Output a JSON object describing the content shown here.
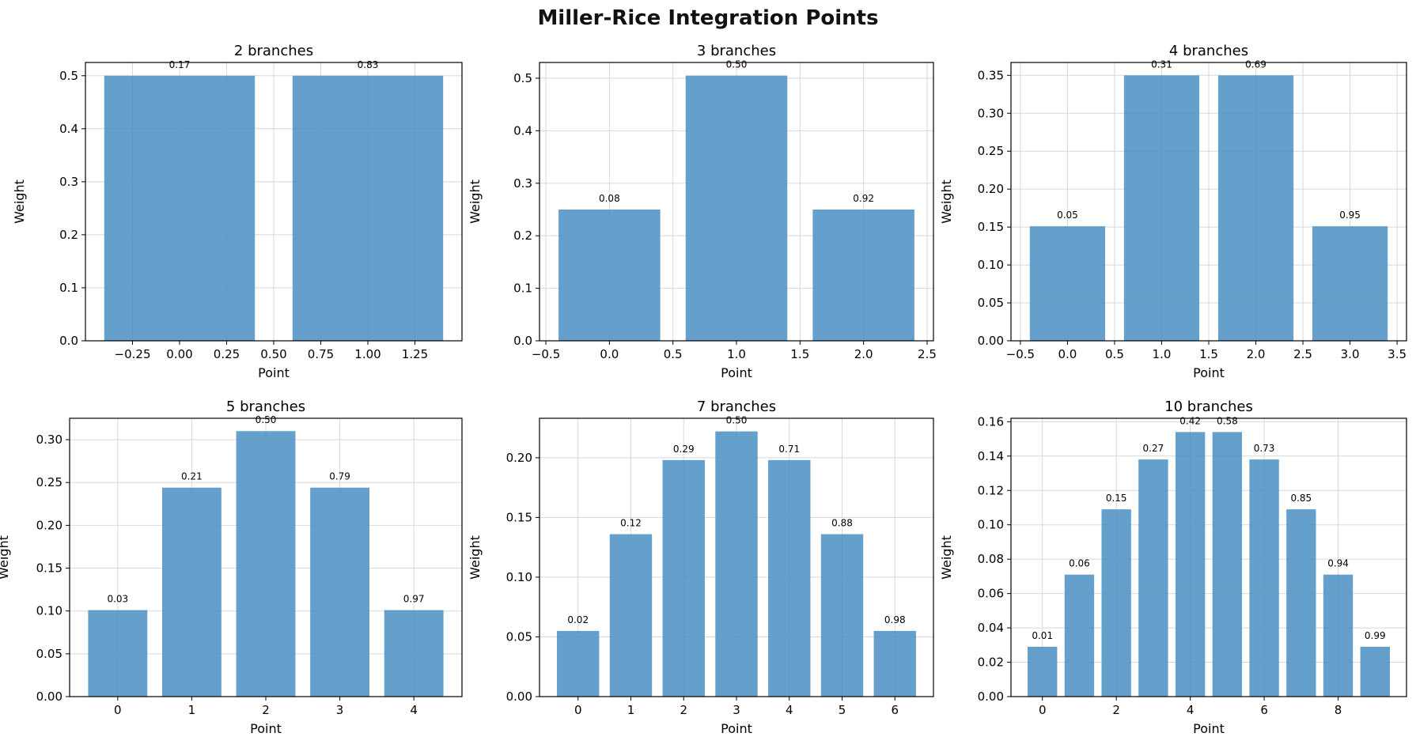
{
  "title": "Miller-Rice Integration Points",
  "colors": {
    "bar": "#4a90c2",
    "bar_opacity": 0.86,
    "grid": "#d8d8d8",
    "axis": "#000000"
  },
  "chart_data": [
    {
      "type": "bar",
      "title": "2 branches",
      "xlabel": "Point",
      "ylabel": "Weight",
      "x": [
        0,
        1
      ],
      "values": [
        0.5,
        0.5
      ],
      "bar_labels": [
        "0.17",
        "0.83"
      ],
      "xlim": [
        -0.5,
        1.5
      ],
      "ylim": [
        0,
        0.525
      ],
      "xticks": [
        -0.25,
        0.0,
        0.25,
        0.5,
        0.75,
        1.0,
        1.25
      ],
      "xtick_labels": [
        "−0.25",
        "0.00",
        "0.25",
        "0.50",
        "0.75",
        "1.00",
        "1.25"
      ],
      "yticks": [
        0,
        0.1,
        0.2,
        0.3,
        0.4,
        0.5
      ],
      "ytick_labels": [
        "0.0",
        "0.1",
        "0.2",
        "0.3",
        "0.4",
        "0.5"
      ],
      "grid": true
    },
    {
      "type": "bar",
      "title": "3 branches",
      "xlabel": "Point",
      "ylabel": "Weight",
      "x": [
        0,
        1,
        2
      ],
      "values": [
        0.25,
        0.505,
        0.25
      ],
      "bar_labels": [
        "0.08",
        "0.50",
        "0.92"
      ],
      "xlim": [
        -0.55,
        2.55
      ],
      "ylim": [
        0,
        0.53
      ],
      "xticks": [
        -0.5,
        0.0,
        0.5,
        1.0,
        1.5,
        2.0,
        2.5
      ],
      "xtick_labels": [
        "−0.5",
        "0.0",
        "0.5",
        "1.0",
        "1.5",
        "2.0",
        "2.5"
      ],
      "yticks": [
        0,
        0.1,
        0.2,
        0.3,
        0.4,
        0.5
      ],
      "ytick_labels": [
        "0.0",
        "0.1",
        "0.2",
        "0.3",
        "0.4",
        "0.5"
      ],
      "grid": true
    },
    {
      "type": "bar",
      "title": "4 branches",
      "xlabel": "Point",
      "ylabel": "Weight",
      "x": [
        0,
        1,
        2,
        3
      ],
      "values": [
        0.151,
        0.35,
        0.35,
        0.151
      ],
      "bar_labels": [
        "0.05",
        "0.31",
        "0.69",
        "0.95"
      ],
      "xlim": [
        -0.6,
        3.6
      ],
      "ylim": [
        0,
        0.367
      ],
      "xticks": [
        -0.5,
        0.0,
        0.5,
        1.0,
        1.5,
        2.0,
        2.5,
        3.0,
        3.5
      ],
      "xtick_labels": [
        "−0.5",
        "0.0",
        "0.5",
        "1.0",
        "1.5",
        "2.0",
        "2.5",
        "3.0",
        "3.5"
      ],
      "yticks": [
        0,
        0.05,
        0.1,
        0.15,
        0.2,
        0.25,
        0.3,
        0.35
      ],
      "ytick_labels": [
        "0.00",
        "0.05",
        "0.10",
        "0.15",
        "0.20",
        "0.25",
        "0.30",
        "0.35"
      ],
      "grid": true
    },
    {
      "type": "bar",
      "title": "5 branches",
      "xlabel": "Point",
      "ylabel": "Weight",
      "x": [
        0,
        1,
        2,
        3,
        4
      ],
      "values": [
        0.101,
        0.244,
        0.31,
        0.244,
        0.101
      ],
      "bar_labels": [
        "0.03",
        "0.21",
        "0.50",
        "0.79",
        "0.97"
      ],
      "xlim": [
        -0.65,
        4.65
      ],
      "ylim": [
        0,
        0.325
      ],
      "xticks": [
        0,
        1,
        2,
        3,
        4
      ],
      "xtick_labels": [
        "0",
        "1",
        "2",
        "3",
        "4"
      ],
      "yticks": [
        0,
        0.05,
        0.1,
        0.15,
        0.2,
        0.25,
        0.3
      ],
      "ytick_labels": [
        "0.00",
        "0.05",
        "0.10",
        "0.15",
        "0.20",
        "0.25",
        "0.30"
      ],
      "grid": true
    },
    {
      "type": "bar",
      "title": "7 branches",
      "xlabel": "Point",
      "ylabel": "Weight",
      "x": [
        0,
        1,
        2,
        3,
        4,
        5,
        6
      ],
      "values": [
        0.055,
        0.136,
        0.198,
        0.222,
        0.198,
        0.136,
        0.055
      ],
      "bar_labels": [
        "0.02",
        "0.12",
        "0.29",
        "0.50",
        "0.71",
        "0.88",
        "0.98"
      ],
      "xlim": [
        -0.73,
        6.73
      ],
      "ylim": [
        0,
        0.233
      ],
      "xticks": [
        0,
        1,
        2,
        3,
        4,
        5,
        6
      ],
      "xtick_labels": [
        "0",
        "1",
        "2",
        "3",
        "4",
        "5",
        "6"
      ],
      "yticks": [
        0,
        0.05,
        0.1,
        0.15,
        0.2
      ],
      "ytick_labels": [
        "0.00",
        "0.05",
        "0.10",
        "0.15",
        "0.20"
      ],
      "grid": true
    },
    {
      "type": "bar",
      "title": "10 branches",
      "xlabel": "Point",
      "ylabel": "Weight",
      "x": [
        0,
        1,
        2,
        3,
        4,
        5,
        6,
        7,
        8,
        9
      ],
      "values": [
        0.029,
        0.071,
        0.109,
        0.138,
        0.154,
        0.154,
        0.138,
        0.109,
        0.071,
        0.029
      ],
      "bar_labels": [
        "0.01",
        "0.06",
        "0.15",
        "0.27",
        "0.42",
        "0.58",
        "0.73",
        "0.85",
        "0.94",
        "0.99"
      ],
      "xlim": [
        -0.85,
        9.85
      ],
      "ylim": [
        0,
        0.162
      ],
      "xticks": [
        0,
        2,
        4,
        6,
        8
      ],
      "xtick_labels": [
        "0",
        "2",
        "4",
        "6",
        "8"
      ],
      "yticks": [
        0,
        0.02,
        0.04,
        0.06,
        0.08,
        0.1,
        0.12,
        0.14,
        0.16
      ],
      "ytick_labels": [
        "0.00",
        "0.02",
        "0.04",
        "0.06",
        "0.08",
        "0.10",
        "0.12",
        "0.14",
        "0.16"
      ],
      "grid": true
    }
  ]
}
